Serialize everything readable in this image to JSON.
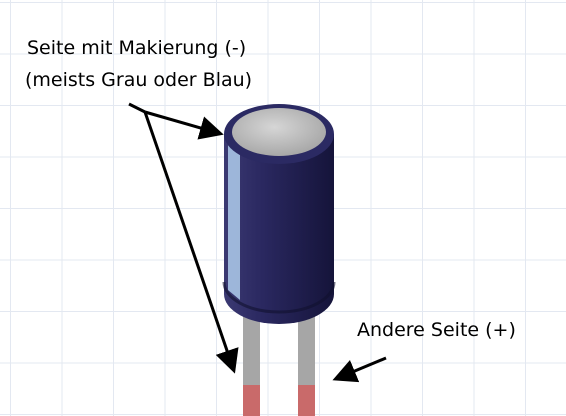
{
  "labels": {
    "negative_line1": "Seite mit Makierung (-)",
    "negative_line2": "(meists Grau oder Blau)",
    "positive": "Andere Seite (+)"
  },
  "colors": {
    "capacitor_body": "#23214f",
    "capacitor_top": "#c8c8c8",
    "stripe": "#a9c4e6",
    "lead": "#a6a6a6",
    "lead_tip": "#c96a6a",
    "grid": "#e3e8f1"
  }
}
